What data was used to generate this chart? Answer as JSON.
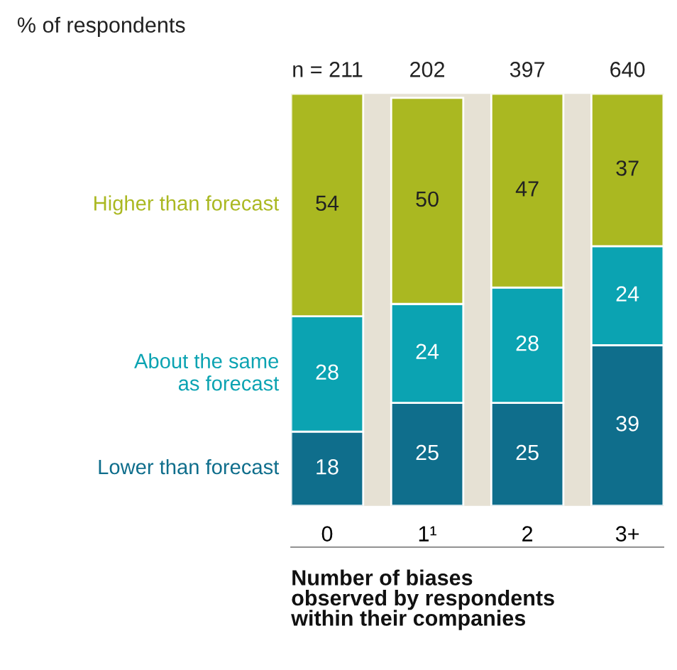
{
  "chart_data": {
    "type": "bar",
    "stacked": true,
    "title": "% of respondents",
    "xlabel": "Number of biases\nobserved by respondents\nwithin their companies",
    "categories": [
      "0",
      "1¹",
      "2",
      "3+"
    ],
    "series": [
      {
        "name": "Lower than forecast",
        "color": "#0f6e8c",
        "values": [
          18,
          25,
          25,
          39
        ]
      },
      {
        "name": "About the same\nas forecast",
        "color": "#0ba3b2",
        "values": [
          28,
          24,
          28,
          24
        ]
      },
      {
        "name": "Higher than forecast",
        "color": "#aab821",
        "values": [
          54,
          50,
          47,
          37
        ]
      }
    ],
    "annotations": [
      "n = 211",
      "202",
      "397",
      "640"
    ],
    "ylim": [
      0,
      100
    ],
    "tick_labels": "x",
    "data_labels": true,
    "legend": false,
    "grid": false
  }
}
